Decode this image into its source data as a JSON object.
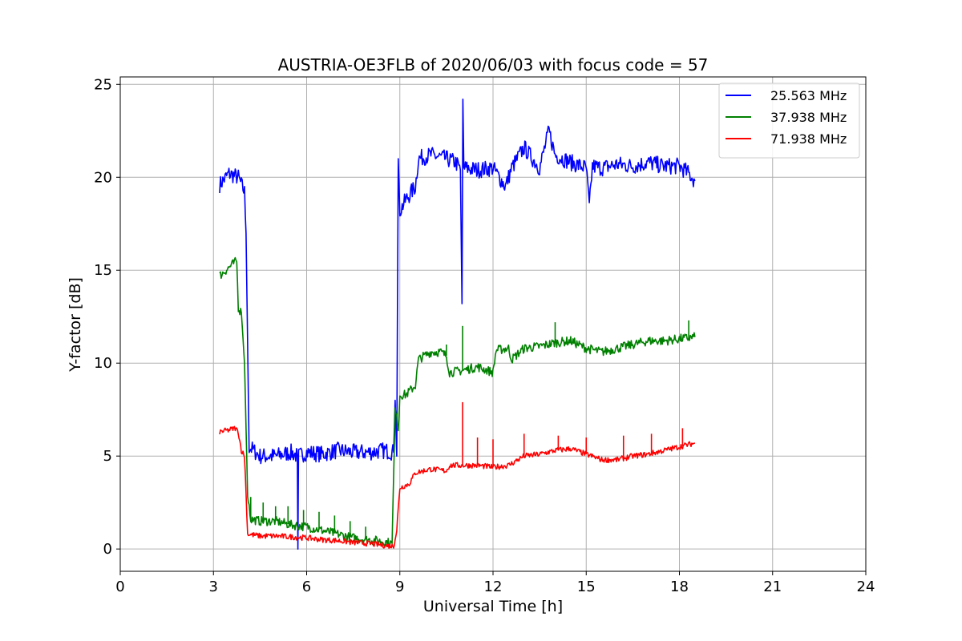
{
  "chart_data": {
    "type": "line",
    "title": "AUSTRIA-OE3FLB of 2020/06/03 with focus code = 57",
    "xlabel": "Universal Time [h]",
    "ylabel": "Y-factor [dB]",
    "xlim": [
      0,
      24
    ],
    "ylim": [
      -1.2,
      25.4
    ],
    "xticks": [
      0,
      3,
      6,
      9,
      12,
      15,
      18,
      21,
      24
    ],
    "yticks": [
      0,
      5,
      10,
      15,
      20,
      25
    ],
    "grid": true,
    "legend_position": "top-right",
    "series": [
      {
        "name": "25.563 MHz",
        "color": "#0000ff",
        "noise": 0.45,
        "points": [
          [
            3.2,
            19.6
          ],
          [
            3.5,
            20.2
          ],
          [
            3.8,
            20.0
          ],
          [
            4.0,
            19.2
          ],
          [
            4.05,
            17.0
          ],
          [
            4.1,
            11.0
          ],
          [
            4.15,
            5.5
          ],
          [
            4.5,
            5.0
          ],
          [
            5.0,
            5.0
          ],
          [
            5.5,
            5.2
          ],
          [
            5.7,
            5.0
          ],
          [
            5.72,
            0.0
          ],
          [
            5.74,
            5.0
          ],
          [
            6.0,
            5.2
          ],
          [
            6.5,
            5.1
          ],
          [
            7.0,
            5.3
          ],
          [
            7.5,
            5.2
          ],
          [
            8.0,
            5.2
          ],
          [
            8.5,
            5.3
          ],
          [
            8.8,
            5.2
          ],
          [
            8.85,
            8.0
          ],
          [
            8.9,
            5.0
          ],
          [
            8.95,
            21.0
          ],
          [
            9.0,
            18.2
          ],
          [
            9.2,
            18.8
          ],
          [
            9.5,
            19.5
          ],
          [
            9.6,
            21.0
          ],
          [
            10.0,
            21.2
          ],
          [
            10.5,
            21.0
          ],
          [
            10.8,
            20.8
          ],
          [
            10.95,
            20.4
          ],
          [
            11.0,
            13.2
          ],
          [
            11.03,
            24.2
          ],
          [
            11.06,
            20.5
          ],
          [
            11.5,
            20.4
          ],
          [
            12.0,
            20.5
          ],
          [
            12.4,
            19.5
          ],
          [
            12.6,
            20.5
          ],
          [
            13.0,
            21.6
          ],
          [
            13.5,
            20.5
          ],
          [
            13.8,
            22.5
          ],
          [
            14.0,
            21.2
          ],
          [
            14.5,
            20.8
          ],
          [
            15.0,
            20.5
          ],
          [
            15.1,
            18.4
          ],
          [
            15.2,
            20.6
          ],
          [
            15.5,
            20.5
          ],
          [
            16.0,
            20.7
          ],
          [
            16.5,
            20.6
          ],
          [
            17.0,
            20.8
          ],
          [
            17.5,
            20.6
          ],
          [
            18.0,
            20.6
          ],
          [
            18.3,
            20.2
          ],
          [
            18.5,
            19.8
          ]
        ]
      },
      {
        "name": "37.938 MHz",
        "color": "#008000",
        "noise": 0.25,
        "points": [
          [
            3.2,
            14.7
          ],
          [
            3.4,
            15.0
          ],
          [
            3.6,
            15.3
          ],
          [
            3.75,
            15.5
          ],
          [
            3.8,
            13.0
          ],
          [
            3.9,
            12.7
          ],
          [
            4.0,
            10.0
          ],
          [
            4.1,
            3.0
          ],
          [
            4.2,
            1.6
          ],
          [
            4.5,
            1.5
          ],
          [
            5.0,
            1.5
          ],
          [
            5.5,
            1.3
          ],
          [
            6.0,
            1.2
          ],
          [
            6.5,
            1.0
          ],
          [
            7.0,
            0.8
          ],
          [
            7.5,
            0.6
          ],
          [
            8.0,
            0.5
          ],
          [
            8.5,
            0.4
          ],
          [
            8.75,
            0.3
          ],
          [
            8.85,
            7.5
          ],
          [
            8.95,
            6.5
          ],
          [
            9.0,
            8.3
          ],
          [
            9.2,
            8.3
          ],
          [
            9.5,
            8.8
          ],
          [
            9.6,
            10.2
          ],
          [
            10.0,
            10.6
          ],
          [
            10.3,
            10.6
          ],
          [
            10.5,
            10.4
          ],
          [
            10.6,
            9.5
          ],
          [
            11.0,
            9.6
          ],
          [
            11.5,
            9.8
          ],
          [
            12.0,
            9.5
          ],
          [
            12.1,
            10.7
          ],
          [
            12.5,
            10.8
          ],
          [
            12.6,
            10.2
          ],
          [
            13.0,
            10.8
          ],
          [
            13.5,
            10.9
          ],
          [
            14.0,
            11.1
          ],
          [
            14.5,
            11.2
          ],
          [
            15.0,
            10.8
          ],
          [
            15.5,
            10.6
          ],
          [
            16.0,
            10.8
          ],
          [
            16.5,
            11.0
          ],
          [
            17.0,
            11.2
          ],
          [
            17.5,
            11.2
          ],
          [
            18.0,
            11.3
          ],
          [
            18.5,
            11.4
          ]
        ]
      },
      {
        "name": "71.938 MHz",
        "color": "#ff0000",
        "noise": 0.15,
        "points": [
          [
            3.2,
            6.3
          ],
          [
            3.5,
            6.4
          ],
          [
            3.7,
            6.5
          ],
          [
            3.8,
            6.3
          ],
          [
            3.9,
            5.3
          ],
          [
            4.0,
            5.0
          ],
          [
            4.05,
            3.0
          ],
          [
            4.1,
            0.8
          ],
          [
            4.5,
            0.7
          ],
          [
            5.0,
            0.7
          ],
          [
            5.5,
            0.65
          ],
          [
            6.0,
            0.6
          ],
          [
            6.5,
            0.5
          ],
          [
            7.0,
            0.45
          ],
          [
            7.5,
            0.35
          ],
          [
            8.0,
            0.3
          ],
          [
            8.5,
            0.2
          ],
          [
            8.8,
            0.15
          ],
          [
            8.9,
            1.0
          ],
          [
            9.0,
            3.3
          ],
          [
            9.3,
            3.5
          ],
          [
            9.5,
            4.1
          ],
          [
            10.0,
            4.3
          ],
          [
            10.5,
            4.2
          ],
          [
            10.6,
            4.5
          ],
          [
            11.0,
            4.5
          ],
          [
            11.5,
            4.5
          ],
          [
            12.0,
            4.4
          ],
          [
            12.5,
            4.5
          ],
          [
            13.0,
            5.0
          ],
          [
            13.5,
            5.1
          ],
          [
            14.0,
            5.3
          ],
          [
            14.5,
            5.4
          ],
          [
            15.0,
            5.1
          ],
          [
            15.5,
            4.8
          ],
          [
            16.0,
            4.8
          ],
          [
            16.5,
            5.0
          ],
          [
            17.0,
            5.1
          ],
          [
            17.5,
            5.3
          ],
          [
            18.0,
            5.5
          ],
          [
            18.5,
            5.7
          ]
        ]
      }
    ],
    "spikes": [
      {
        "series": 1,
        "x": 10.5,
        "y": 11.0
      },
      {
        "series": 1,
        "x": 11.02,
        "y": 12.0
      },
      {
        "series": 1,
        "x": 14.0,
        "y": 12.2
      },
      {
        "series": 1,
        "x": 18.3,
        "y": 12.3
      },
      {
        "series": 1,
        "x": 4.2,
        "y": 2.8
      },
      {
        "series": 1,
        "x": 4.6,
        "y": 2.5
      },
      {
        "series": 1,
        "x": 5.0,
        "y": 2.3
      },
      {
        "series": 1,
        "x": 5.4,
        "y": 2.3
      },
      {
        "series": 1,
        "x": 5.9,
        "y": 2.1
      },
      {
        "series": 1,
        "x": 6.4,
        "y": 2.0
      },
      {
        "series": 1,
        "x": 6.9,
        "y": 1.8
      },
      {
        "series": 1,
        "x": 7.4,
        "y": 1.5
      },
      {
        "series": 1,
        "x": 7.9,
        "y": 1.2
      },
      {
        "series": 2,
        "x": 11.02,
        "y": 7.9
      },
      {
        "series": 2,
        "x": 11.5,
        "y": 6.0
      },
      {
        "series": 2,
        "x": 12.0,
        "y": 5.9
      },
      {
        "series": 2,
        "x": 13.0,
        "y": 6.2
      },
      {
        "series": 2,
        "x": 14.1,
        "y": 6.1
      },
      {
        "series": 2,
        "x": 15.0,
        "y": 6.0
      },
      {
        "series": 2,
        "x": 16.2,
        "y": 6.1
      },
      {
        "series": 2,
        "x": 17.1,
        "y": 6.2
      },
      {
        "series": 2,
        "x": 18.1,
        "y": 6.5
      }
    ]
  }
}
